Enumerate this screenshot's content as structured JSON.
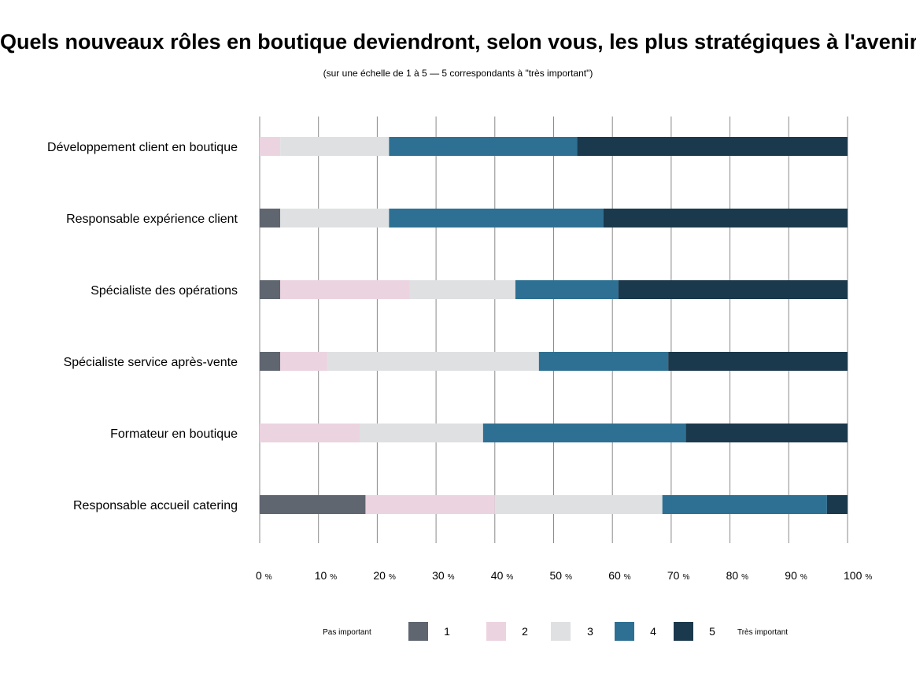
{
  "chart_data": {
    "type": "bar",
    "orientation": "horizontal",
    "stacked": true,
    "title": "Quels nouveaux rôles en boutique deviendront, selon vous, les plus stratégiques à l'avenir ?",
    "subtitle": "(sur une échelle de 1 à 5 — 5 correspondants à \"très important\")",
    "categories": [
      "Développement client en boutique",
      "Responsable expérience client",
      "Spécialiste des opérations",
      "Spécialiste service après-vente",
      "Formateur en boutique",
      "Responsable accueil catering"
    ],
    "series": [
      {
        "name": "1",
        "color": "#5f6670",
        "values": [
          0,
          3.5,
          3.5,
          3.5,
          0,
          18
        ]
      },
      {
        "name": "2",
        "color": "#ecd3e0",
        "values": [
          3.5,
          0,
          22,
          8,
          17,
          22
        ]
      },
      {
        "name": "3",
        "color": "#dfe0e2",
        "values": [
          18.5,
          18.5,
          18,
          36,
          21,
          28.5
        ]
      },
      {
        "name": "4",
        "color": "#2e7093",
        "values": [
          32,
          36.5,
          17.5,
          22,
          34.5,
          28
        ]
      },
      {
        "name": "5",
        "color": "#1b394d",
        "values": [
          46,
          41.5,
          39,
          30.5,
          27.5,
          3.5
        ]
      }
    ],
    "xlim": [
      0,
      100
    ],
    "xticks": [
      "0",
      "10",
      "20",
      "30",
      "40",
      "50",
      "60",
      "70",
      "80",
      "90",
      "100"
    ],
    "tick_unit": "%",
    "grid": true,
    "legend": {
      "position": "bottom",
      "low_label": "Pas important",
      "high_label": "Très important",
      "entries": [
        "1",
        "2",
        "3",
        "4",
        "5"
      ]
    }
  }
}
